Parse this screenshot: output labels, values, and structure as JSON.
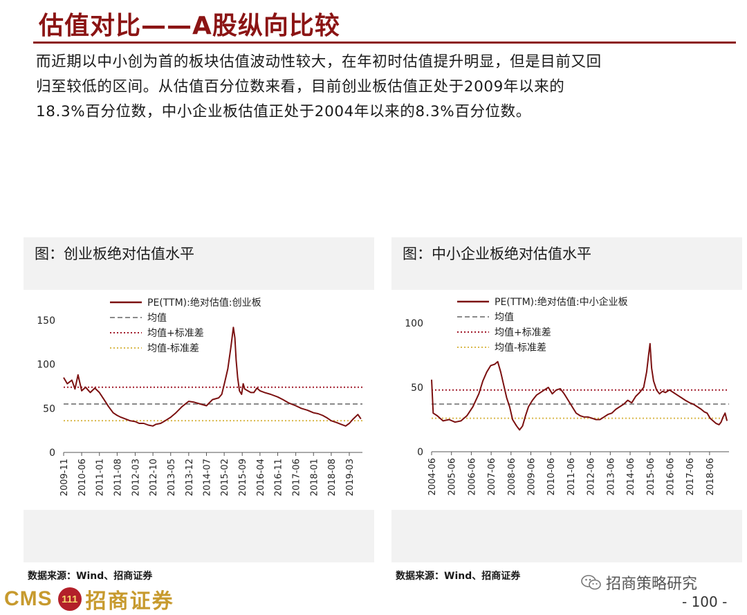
{
  "slide_title": "估值对比——A股纵向比较",
  "body_lines": [
    "而近期以中小创为首的板块估值波动性较大，在年初时估值提升明显，但是目前又回",
    "归至较低的区间。从估值百分位数来看，目前创业板估值正处于2009年以来的",
    "18.3%百分位数，中小企业板估值正处于2004年以来的8.3%百分位数。"
  ],
  "left_panel": {
    "title": "图：创业板绝对估值水平",
    "source": "数据来源：Wind、招商证券"
  },
  "right_panel": {
    "title": "图：中小企业板绝对估值水平",
    "source": "数据来源：Wind、招商证券"
  },
  "footer": {
    "logo_en": "CMS",
    "logo_badge": "111",
    "logo_cn": "招商证券",
    "wechat_label": "招商策略研究",
    "page_number": "- 100 -"
  },
  "colors": {
    "accent": "#8b1414",
    "series": "#7b1010",
    "mean": "#8a8a8a",
    "plus_std": "#a11a2a",
    "minus_std": "#d9b84a"
  },
  "chart_data": [
    {
      "type": "line",
      "legend": [
        "PE(TTM):绝对估值:创业板",
        "均值",
        "均值+标准差",
        "均值-标准差"
      ],
      "ylim": [
        0,
        150
      ],
      "yticks": [
        0,
        50,
        100,
        150
      ],
      "xlim": [
        2009.83,
        2019.6
      ],
      "xtick_labels": [
        "2009-11",
        "2010-06",
        "2011-01",
        "2011-08",
        "2012-03",
        "2012-10",
        "2013-05",
        "2013-12",
        "2014-07",
        "2015-02",
        "2015-09",
        "2016-04",
        "2016-11",
        "2017-06",
        "2018-01",
        "2018-08",
        "2019-03"
      ],
      "xtick_values": [
        2009.83,
        2010.42,
        2011.0,
        2011.58,
        2012.17,
        2012.75,
        2013.33,
        2013.92,
        2014.5,
        2015.08,
        2015.67,
        2016.25,
        2016.83,
        2017.42,
        2018.0,
        2018.58,
        2019.17
      ],
      "mean": 55,
      "mean_plus_std": 74,
      "mean_minus_std": 36,
      "series": [
        {
          "name": "PE(TTM):绝对估值:创业板",
          "x": [
            2009.83,
            2009.95,
            2010.1,
            2010.2,
            2010.3,
            2010.42,
            2010.55,
            2010.7,
            2010.85,
            2011.0,
            2011.15,
            2011.3,
            2011.45,
            2011.58,
            2011.7,
            2011.85,
            2012.0,
            2012.17,
            2012.3,
            2012.45,
            2012.6,
            2012.75,
            2012.85,
            2013.0,
            2013.15,
            2013.33,
            2013.5,
            2013.7,
            2013.92,
            2014.1,
            2014.3,
            2014.5,
            2014.7,
            2014.9,
            2015.0,
            2015.1,
            2015.2,
            2015.3,
            2015.38,
            2015.43,
            2015.47,
            2015.52,
            2015.58,
            2015.65,
            2015.7,
            2015.75,
            2015.85,
            2015.95,
            2016.05,
            2016.15,
            2016.25,
            2016.4,
            2016.6,
            2016.83,
            2017.0,
            2017.2,
            2017.42,
            2017.6,
            2017.8,
            2018.0,
            2018.15,
            2018.3,
            2018.45,
            2018.58,
            2018.75,
            2018.9,
            2019.05,
            2019.17,
            2019.3,
            2019.45,
            2019.55
          ],
          "y": [
            85,
            78,
            82,
            72,
            88,
            70,
            74,
            68,
            73,
            68,
            60,
            52,
            45,
            42,
            40,
            38,
            36,
            35,
            33,
            33,
            31,
            30,
            32,
            33,
            36,
            40,
            45,
            52,
            58,
            57,
            55,
            53,
            60,
            62,
            66,
            80,
            95,
            120,
            142,
            130,
            105,
            85,
            70,
            66,
            78,
            72,
            70,
            68,
            68,
            73,
            70,
            68,
            66,
            63,
            60,
            56,
            53,
            50,
            48,
            45,
            44,
            42,
            39,
            36,
            34,
            32,
            30,
            33,
            38,
            43,
            38
          ]
        }
      ]
    },
    {
      "type": "line",
      "legend": [
        "PE(TTM):绝对估值:中小企业板",
        "均值",
        "均值+标准差",
        "均值-标准差"
      ],
      "ylim": [
        0,
        100
      ],
      "yticks": [
        0,
        50,
        100
      ],
      "xlim": [
        2004.42,
        2019.4
      ],
      "xtick_labels": [
        "2004-06",
        "2005-06",
        "2006-06",
        "2007-06",
        "2008-06",
        "2009-06",
        "2010-06",
        "2011-06",
        "2012-06",
        "2013-06",
        "2014-06",
        "2015-06",
        "2016-06",
        "2017-06",
        "2018-06"
      ],
      "xtick_values": [
        2004.42,
        2005.42,
        2006.42,
        2007.42,
        2008.42,
        2009.42,
        2010.42,
        2011.42,
        2012.42,
        2013.42,
        2014.42,
        2015.42,
        2016.42,
        2017.42,
        2018.42
      ],
      "mean": 37,
      "mean_plus_std": 48,
      "mean_minus_std": 26,
      "series": [
        {
          "name": "PE(TTM):绝对估值:中小企业板",
          "x": [
            2004.42,
            2004.5,
            2004.7,
            2005.0,
            2005.3,
            2005.6,
            2005.9,
            2006.2,
            2006.5,
            2006.8,
            2007.0,
            2007.2,
            2007.4,
            2007.6,
            2007.75,
            2007.9,
            2008.05,
            2008.2,
            2008.35,
            2008.5,
            2008.7,
            2008.85,
            2009.0,
            2009.15,
            2009.3,
            2009.5,
            2009.7,
            2009.9,
            2010.1,
            2010.3,
            2010.5,
            2010.7,
            2010.9,
            2011.1,
            2011.3,
            2011.5,
            2011.7,
            2011.9,
            2012.1,
            2012.3,
            2012.5,
            2012.7,
            2012.9,
            2013.1,
            2013.3,
            2013.5,
            2013.7,
            2013.9,
            2014.1,
            2014.3,
            2014.5,
            2014.7,
            2014.9,
            2015.1,
            2015.25,
            2015.35,
            2015.42,
            2015.5,
            2015.6,
            2015.75,
            2015.9,
            2016.05,
            2016.2,
            2016.4,
            2016.6,
            2016.8,
            2017.0,
            2017.2,
            2017.42,
            2017.6,
            2017.8,
            2018.0,
            2018.15,
            2018.3,
            2018.45,
            2018.6,
            2018.75,
            2018.9,
            2019.0,
            2019.1,
            2019.2,
            2019.3
          ],
          "y": [
            56,
            30,
            28,
            24,
            25,
            23,
            24,
            28,
            35,
            45,
            55,
            62,
            67,
            68,
            70,
            62,
            52,
            42,
            35,
            25,
            20,
            17,
            20,
            28,
            35,
            40,
            44,
            46,
            48,
            50,
            45,
            48,
            49,
            45,
            40,
            35,
            30,
            28,
            27,
            27,
            26,
            25,
            25,
            27,
            29,
            30,
            33,
            35,
            37,
            40,
            38,
            43,
            46,
            50,
            62,
            75,
            84,
            65,
            55,
            48,
            45,
            47,
            46,
            48,
            46,
            44,
            42,
            40,
            38,
            37,
            35,
            33,
            31,
            30,
            26,
            24,
            22,
            21,
            23,
            27,
            30,
            24
          ]
        }
      ]
    }
  ]
}
